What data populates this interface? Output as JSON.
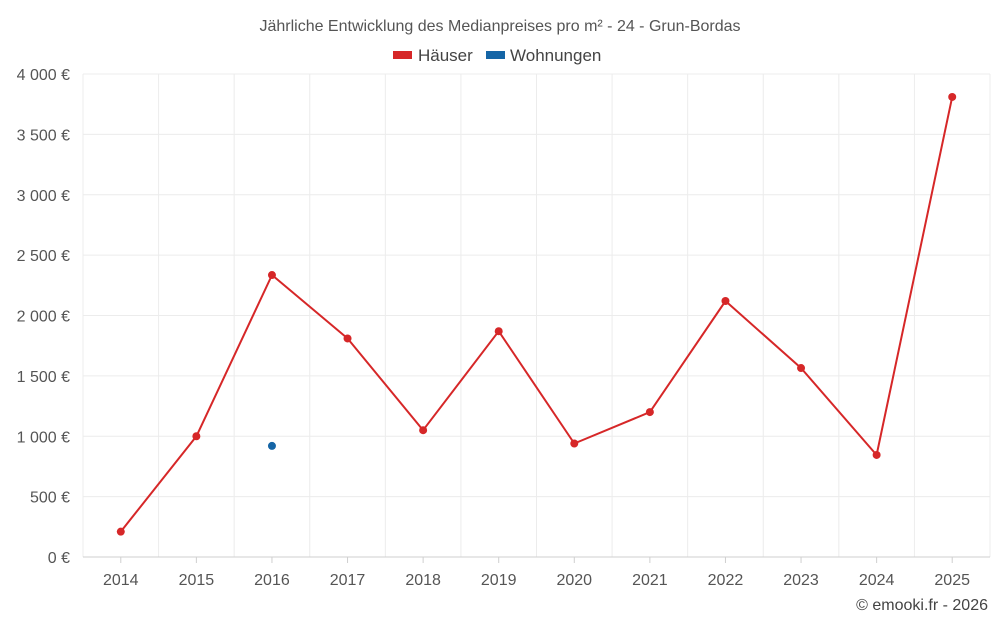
{
  "chart_data": {
    "type": "line",
    "title": "Jährliche Entwicklung des Medianpreises pro m² - 24 - Grun-Bordas",
    "categories": [
      "2014",
      "2015",
      "2016",
      "2017",
      "2018",
      "2019",
      "2020",
      "2021",
      "2022",
      "2023",
      "2024",
      "2025"
    ],
    "series": [
      {
        "name": "Häuser",
        "color": "#d62728",
        "values": [
          210,
          1000,
          2335,
          1810,
          1050,
          1870,
          940,
          1200,
          2120,
          1565,
          845,
          3810
        ]
      },
      {
        "name": "Wohnungen",
        "color": "#1565a6",
        "values": [
          null,
          null,
          920,
          null,
          null,
          null,
          null,
          null,
          null,
          null,
          null,
          null
        ]
      }
    ],
    "ylim": [
      0,
      4000
    ],
    "yticks": [
      0,
      500,
      1000,
      1500,
      2000,
      2500,
      3000,
      3500,
      4000
    ],
    "ytick_labels": [
      "0 €",
      "500 €",
      "1 000 €",
      "1 500 €",
      "2 000 €",
      "2 500 €",
      "3 000 €",
      "3 500 €",
      "4 000 €"
    ],
    "xlabel": "",
    "ylabel": "",
    "grid": true,
    "legend": "top-center"
  },
  "credit": "© emooki.fr - 2026"
}
